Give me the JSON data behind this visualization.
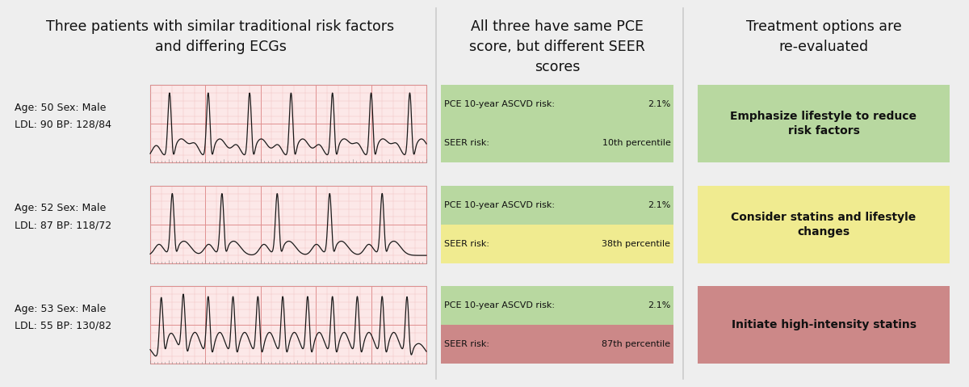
{
  "bg_color": "#eeeeee",
  "title1": "Three patients with similar traditional risk factors\nand differing ECGs",
  "title2": "All three have same PCE\nscore, but different SEER\nscores",
  "title3": "Treatment options are\nre-evaluated",
  "patients": [
    {
      "age": 50,
      "sex": "Male",
      "ldl": 90,
      "bp": "128/84",
      "pce": "2.1%",
      "seer": "10th percentile",
      "box_color_pce": "#b8d8a0",
      "box_color_seer": "#b8d8a0",
      "treatment": "Emphasize lifestyle to reduce\nrisk factors",
      "treat_color": "#b8d8a0"
    },
    {
      "age": 52,
      "sex": "Male",
      "ldl": 87,
      "bp": "118/72",
      "pce": "2.1%",
      "seer": "38th percentile",
      "box_color_pce": "#b8d8a0",
      "box_color_seer": "#f0eb90",
      "treatment": "Consider statins and lifestyle\nchanges",
      "treat_color": "#f0eb90"
    },
    {
      "age": 53,
      "sex": "Male",
      "ldl": 55,
      "bp": "130/82",
      "pce": "2.1%",
      "seer": "87th percentile",
      "box_color_pce": "#b8d8a0",
      "box_color_seer": "#cc8888",
      "treatment": "Initiate high-intensity statins",
      "treat_color": "#cc8888"
    }
  ],
  "ecg_bg": "#fce8e8",
  "ecg_grid_major": "#e09090",
  "ecg_grid_minor": "#f0b8b8",
  "ecg_line": "#1a1a1a",
  "col_divider": "#cccccc",
  "text_color": "#111111",
  "mono_font": "Courier New",
  "sans_font": "DejaVu Sans"
}
